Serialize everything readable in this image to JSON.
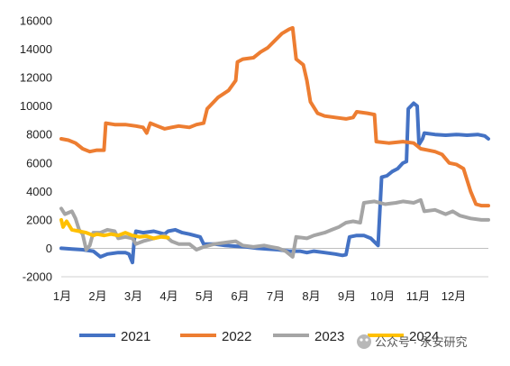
{
  "chart_data": {
    "type": "line",
    "title": "",
    "xlabel": "",
    "ylabel": "",
    "ylim": [
      -2000,
      16000
    ],
    "yticks": [
      -2000,
      0,
      2000,
      4000,
      6000,
      8000,
      10000,
      12000,
      14000,
      16000
    ],
    "xlim": [
      1,
      13
    ],
    "categories": [
      "1月",
      "2月",
      "3月",
      "4月",
      "5月",
      "6月",
      "7月",
      "8月",
      "9月",
      "10月",
      "11月",
      "12月"
    ],
    "grid": false,
    "legend_position": "bottom",
    "series": [
      {
        "name": "2021",
        "color": "#4472C4",
        "points": [
          [
            1.0,
            0
          ],
          [
            1.3,
            -50
          ],
          [
            1.6,
            -100
          ],
          [
            1.9,
            -200
          ],
          [
            2.1,
            -600
          ],
          [
            2.3,
            -400
          ],
          [
            2.6,
            -300
          ],
          [
            2.8,
            -300
          ],
          [
            2.9,
            -400
          ],
          [
            3.0,
            -1000
          ],
          [
            3.05,
            600
          ],
          [
            3.1,
            1200
          ],
          [
            3.3,
            1100
          ],
          [
            3.6,
            1200
          ],
          [
            3.9,
            1000
          ],
          [
            4.0,
            1200
          ],
          [
            4.2,
            1300
          ],
          [
            4.4,
            1100
          ],
          [
            4.6,
            1000
          ],
          [
            4.9,
            800
          ],
          [
            5.0,
            300
          ],
          [
            5.3,
            300
          ],
          [
            5.6,
            200
          ],
          [
            5.9,
            150
          ],
          [
            6.2,
            100
          ],
          [
            6.5,
            0
          ],
          [
            6.8,
            -50
          ],
          [
            7.1,
            -100
          ],
          [
            7.4,
            -200
          ],
          [
            7.7,
            -200
          ],
          [
            7.9,
            -300
          ],
          [
            8.1,
            -200
          ],
          [
            8.4,
            -300
          ],
          [
            8.7,
            -400
          ],
          [
            8.9,
            -500
          ],
          [
            9.0,
            -450
          ],
          [
            9.1,
            800
          ],
          [
            9.3,
            900
          ],
          [
            9.5,
            900
          ],
          [
            9.7,
            700
          ],
          [
            9.9,
            200
          ],
          [
            10.0,
            5000
          ],
          [
            10.15,
            5100
          ],
          [
            10.3,
            5400
          ],
          [
            10.45,
            5600
          ],
          [
            10.6,
            6000
          ],
          [
            10.7,
            6100
          ],
          [
            10.75,
            9800
          ],
          [
            10.9,
            10200
          ],
          [
            11.0,
            10000
          ],
          [
            11.05,
            7300
          ],
          [
            11.15,
            7700
          ],
          [
            11.2,
            8100
          ],
          [
            11.5,
            8000
          ],
          [
            11.8,
            7950
          ],
          [
            12.1,
            8000
          ],
          [
            12.4,
            7950
          ],
          [
            12.7,
            8000
          ],
          [
            12.9,
            7900
          ],
          [
            13.0,
            7700
          ]
        ]
      },
      {
        "name": "2022",
        "color": "#ED7D31",
        "points": [
          [
            1.0,
            7700
          ],
          [
            1.2,
            7600
          ],
          [
            1.4,
            7400
          ],
          [
            1.6,
            7000
          ],
          [
            1.8,
            6800
          ],
          [
            2.0,
            6900
          ],
          [
            2.2,
            6900
          ],
          [
            2.25,
            8800
          ],
          [
            2.5,
            8700
          ],
          [
            2.8,
            8700
          ],
          [
            3.1,
            8600
          ],
          [
            3.3,
            8500
          ],
          [
            3.4,
            8100
          ],
          [
            3.5,
            8800
          ],
          [
            3.7,
            8600
          ],
          [
            3.9,
            8400
          ],
          [
            4.1,
            8500
          ],
          [
            4.3,
            8600
          ],
          [
            4.6,
            8500
          ],
          [
            4.8,
            8700
          ],
          [
            5.0,
            8800
          ],
          [
            5.1,
            9800
          ],
          [
            5.4,
            10600
          ],
          [
            5.7,
            11100
          ],
          [
            5.9,
            11800
          ],
          [
            5.95,
            13100
          ],
          [
            6.1,
            13300
          ],
          [
            6.4,
            13400
          ],
          [
            6.6,
            13800
          ],
          [
            6.8,
            14100
          ],
          [
            7.0,
            14600
          ],
          [
            7.2,
            15100
          ],
          [
            7.4,
            15400
          ],
          [
            7.5,
            15500
          ],
          [
            7.6,
            13300
          ],
          [
            7.8,
            12900
          ],
          [
            7.9,
            11800
          ],
          [
            8.0,
            10300
          ],
          [
            8.2,
            9500
          ],
          [
            8.4,
            9300
          ],
          [
            8.7,
            9200
          ],
          [
            9.0,
            9100
          ],
          [
            9.2,
            9200
          ],
          [
            9.3,
            9600
          ],
          [
            9.6,
            9500
          ],
          [
            9.8,
            9400
          ],
          [
            9.85,
            7500
          ],
          [
            10.2,
            7400
          ],
          [
            10.6,
            7500
          ],
          [
            10.9,
            7400
          ],
          [
            11.0,
            7200
          ],
          [
            11.1,
            7000
          ],
          [
            11.3,
            6900
          ],
          [
            11.5,
            6800
          ],
          [
            11.7,
            6600
          ],
          [
            11.9,
            6000
          ],
          [
            12.1,
            5900
          ],
          [
            12.3,
            5600
          ],
          [
            12.5,
            4000
          ],
          [
            12.65,
            3100
          ],
          [
            12.8,
            3000
          ],
          [
            13.0,
            3000
          ]
        ]
      },
      {
        "name": "2023",
        "color": "#A5A5A5",
        "points": [
          [
            1.0,
            2800
          ],
          [
            1.1,
            2400
          ],
          [
            1.3,
            2600
          ],
          [
            1.4,
            2100
          ],
          [
            1.5,
            1300
          ],
          [
            1.6,
            1000
          ],
          [
            1.7,
            -100
          ],
          [
            1.8,
            200
          ],
          [
            1.9,
            1100
          ],
          [
            2.1,
            1100
          ],
          [
            2.3,
            1300
          ],
          [
            2.5,
            1200
          ],
          [
            2.6,
            700
          ],
          [
            2.8,
            800
          ],
          [
            3.0,
            700
          ],
          [
            3.1,
            300
          ],
          [
            3.3,
            500
          ],
          [
            3.6,
            700
          ],
          [
            3.9,
            900
          ],
          [
            4.1,
            500
          ],
          [
            4.3,
            300
          ],
          [
            4.6,
            300
          ],
          [
            4.8,
            -100
          ],
          [
            5.0,
            100
          ],
          [
            5.3,
            300
          ],
          [
            5.6,
            400
          ],
          [
            5.9,
            500
          ],
          [
            6.1,
            200
          ],
          [
            6.4,
            100
          ],
          [
            6.7,
            200
          ],
          [
            6.9,
            100
          ],
          [
            7.1,
            0
          ],
          [
            7.3,
            -200
          ],
          [
            7.5,
            -600
          ],
          [
            7.6,
            800
          ],
          [
            7.9,
            700
          ],
          [
            8.1,
            900
          ],
          [
            8.4,
            1100
          ],
          [
            8.6,
            1300
          ],
          [
            8.8,
            1500
          ],
          [
            9.0,
            1800
          ],
          [
            9.2,
            1900
          ],
          [
            9.4,
            1800
          ],
          [
            9.5,
            3200
          ],
          [
            9.8,
            3300
          ],
          [
            10.1,
            3100
          ],
          [
            10.4,
            3200
          ],
          [
            10.6,
            3300
          ],
          [
            10.9,
            3200
          ],
          [
            11.1,
            3400
          ],
          [
            11.2,
            2600
          ],
          [
            11.5,
            2700
          ],
          [
            11.8,
            2400
          ],
          [
            12.0,
            2600
          ],
          [
            12.2,
            2300
          ],
          [
            12.5,
            2100
          ],
          [
            12.8,
            2000
          ],
          [
            13.0,
            2000
          ]
        ]
      },
      {
        "name": "2024",
        "color": "#FFC000",
        "points": [
          [
            1.0,
            2000
          ],
          [
            1.05,
            1500
          ],
          [
            1.15,
            1900
          ],
          [
            1.3,
            1300
          ],
          [
            1.5,
            1200
          ],
          [
            1.7,
            1100
          ],
          [
            1.9,
            900
          ],
          [
            2.0,
            1000
          ],
          [
            2.2,
            900
          ],
          [
            2.4,
            1000
          ],
          [
            2.6,
            900
          ],
          [
            2.8,
            1100
          ],
          [
            3.0,
            900
          ],
          [
            3.2,
            800
          ],
          [
            3.4,
            850
          ],
          [
            3.6,
            700
          ],
          [
            3.8,
            800
          ],
          [
            4.0,
            750
          ]
        ]
      }
    ]
  },
  "watermark": "公众号 · 永安研究"
}
